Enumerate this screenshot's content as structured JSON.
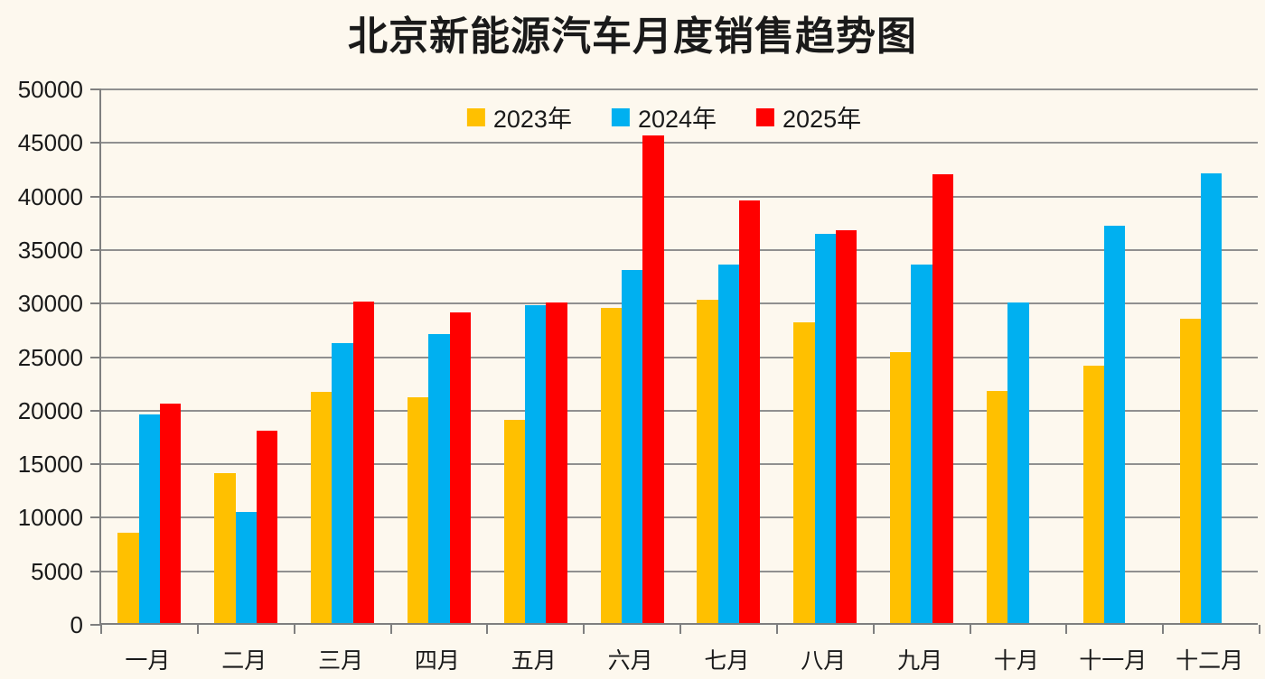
{
  "colors": {
    "background": "#FDF8EE",
    "gridline": "#909090",
    "axis": "#7F7F7F",
    "text": "#1A1A1A"
  },
  "chart_data": {
    "type": "bar",
    "title": "北京新能源汽车月度销售趋势图",
    "categories": [
      "一月",
      "二月",
      "三月",
      "四月",
      "五月",
      "六月",
      "七月",
      "八月",
      "九月",
      "十月",
      "十一月",
      "十二月"
    ],
    "series": [
      {
        "name": "2023年",
        "color": "#FFC000",
        "values": [
          8400,
          14000,
          21600,
          21100,
          19000,
          29400,
          30200,
          28100,
          25300,
          21700,
          24000,
          28400
        ]
      },
      {
        "name": "2024年",
        "color": "#00B0F0",
        "values": [
          19500,
          10400,
          26100,
          27000,
          29700,
          33000,
          33500,
          36300,
          33500,
          29900,
          37100,
          42000
        ]
      },
      {
        "name": "2025年",
        "color": "#FF0000",
        "values": [
          20500,
          18000,
          30000,
          29000,
          29900,
          45500,
          39500,
          36700,
          41900,
          null,
          null,
          null
        ]
      }
    ],
    "xlabel": "",
    "ylabel": "",
    "ylim": [
      0,
      50000
    ],
    "y_ticks": [
      0,
      5000,
      10000,
      15000,
      20000,
      25000,
      30000,
      35000,
      40000,
      45000,
      50000
    ],
    "grid": true,
    "legend_position": "top-center"
  }
}
